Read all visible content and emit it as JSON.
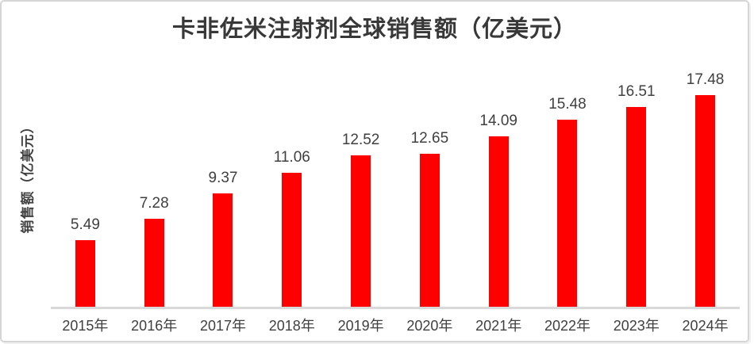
{
  "chart_data": {
    "type": "bar",
    "title": "卡非佐米注射剂全球销售额（亿美元）",
    "ylabel": "销售额（亿美元）",
    "xlabel": "",
    "categories": [
      "2015年",
      "2016年",
      "2017年",
      "2018年",
      "2019年",
      "2020年",
      "2021年",
      "2022年",
      "2023年",
      "2024年"
    ],
    "values": [
      5.49,
      7.28,
      9.37,
      11.06,
      12.52,
      12.65,
      14.09,
      15.48,
      16.51,
      17.48
    ],
    "ylim": [
      0,
      18
    ],
    "grid": false,
    "legend": "none",
    "data_labels": true,
    "bar_color": "#ff0000",
    "label_color": "#404040",
    "axis_color": "#d9d9d9",
    "title_color": "#383838"
  }
}
